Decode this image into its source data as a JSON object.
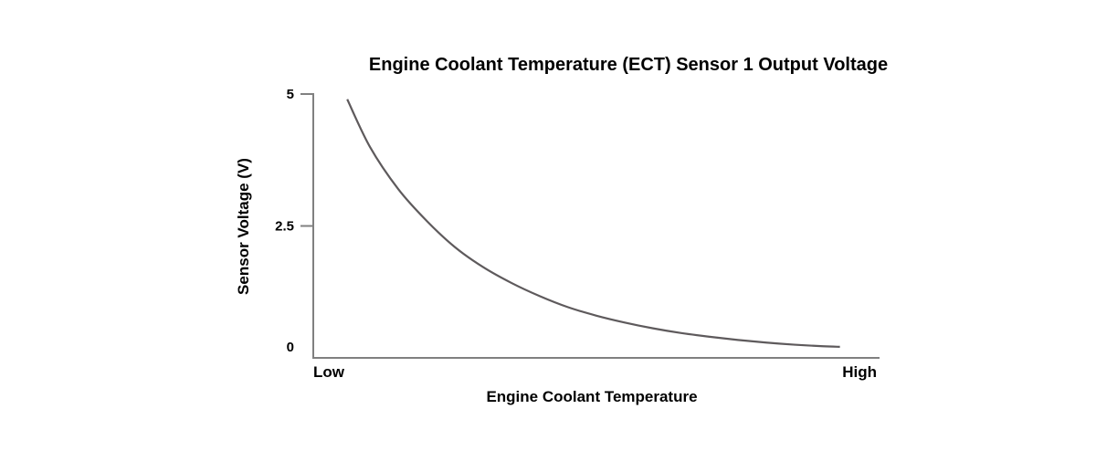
{
  "chart_data": {
    "type": "line",
    "title": "Engine Coolant Temperature (ECT) Sensor 1 Output Voltage",
    "xlabel": "Engine Coolant Temperature",
    "ylabel": "Sensor Voltage (V)",
    "x_tick_labels": [
      "Low",
      "High"
    ],
    "y_ticks": [
      {
        "value": 5,
        "label": "5"
      },
      {
        "value": 2.5,
        "label": "2.5"
      },
      {
        "value": 0,
        "label": "0"
      }
    ],
    "ylim": [
      0,
      5
    ],
    "xlim": [
      0,
      1
    ],
    "grid": false,
    "legend": "none",
    "series": [
      {
        "color": "#5e5a5c",
        "x": [
          0.06,
          0.1,
          0.15,
          0.2,
          0.25,
          0.3,
          0.35,
          0.4,
          0.45,
          0.5,
          0.55,
          0.6,
          0.65,
          0.7,
          0.75,
          0.8,
          0.85,
          0.9,
          0.93
        ],
        "y": [
          4.9,
          4.0,
          3.2,
          2.6,
          2.1,
          1.72,
          1.42,
          1.17,
          0.96,
          0.8,
          0.67,
          0.56,
          0.47,
          0.4,
          0.34,
          0.29,
          0.25,
          0.22,
          0.21
        ]
      }
    ]
  }
}
